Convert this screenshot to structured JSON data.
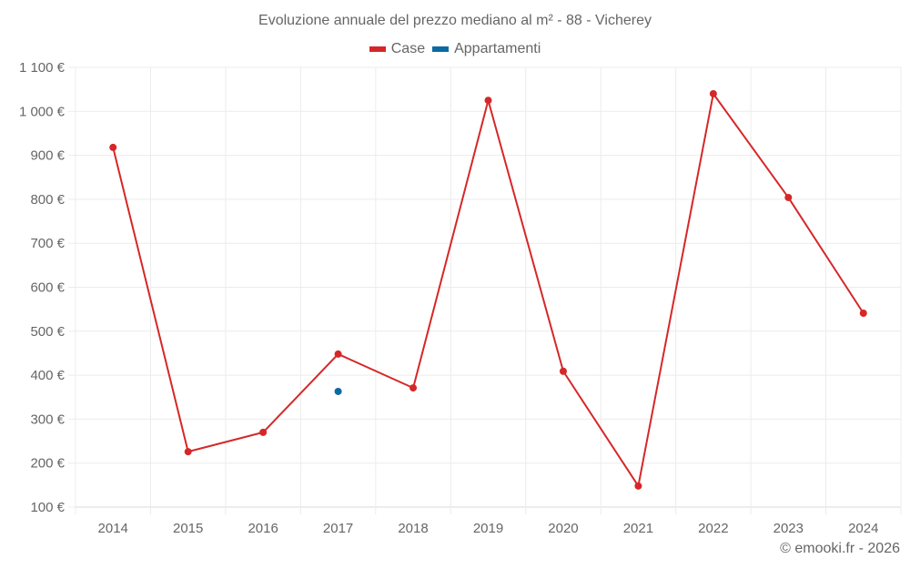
{
  "title": "Evoluzione annuale del prezzo mediano al m² - 88 - Vicherey",
  "legend": [
    {
      "label": "Case",
      "color": "#d62728"
    },
    {
      "label": "Appartamenti",
      "color": "#0b6aa2"
    }
  ],
  "credit": "© emooki.fr - 2026",
  "chart_data": {
    "type": "line",
    "title": "Evoluzione annuale del prezzo mediano al m² - 88 - Vicherey",
    "xlabel": "",
    "ylabel": "",
    "categories": [
      "2014",
      "2015",
      "2016",
      "2017",
      "2018",
      "2019",
      "2020",
      "2021",
      "2022",
      "2023",
      "2024"
    ],
    "series": [
      {
        "name": "Case",
        "color": "#d62728",
        "values": [
          918,
          226,
          270,
          448,
          371,
          1025,
          409,
          148,
          1040,
          804,
          541
        ]
      },
      {
        "name": "Appartamenti",
        "color": "#0b6aa2",
        "values": [
          null,
          null,
          null,
          363,
          null,
          null,
          null,
          null,
          null,
          null,
          null
        ]
      }
    ],
    "ylim": [
      100,
      1100
    ],
    "yticks": [
      100,
      200,
      300,
      400,
      500,
      600,
      700,
      800,
      900,
      1000,
      1100
    ],
    "ytick_labels": [
      "100 €",
      "200 €",
      "300 €",
      "400 €",
      "500 €",
      "600 €",
      "700 €",
      "800 €",
      "900 €",
      "1 000 €",
      "1 100 €"
    ],
    "grid": true,
    "legend_position": "top"
  }
}
